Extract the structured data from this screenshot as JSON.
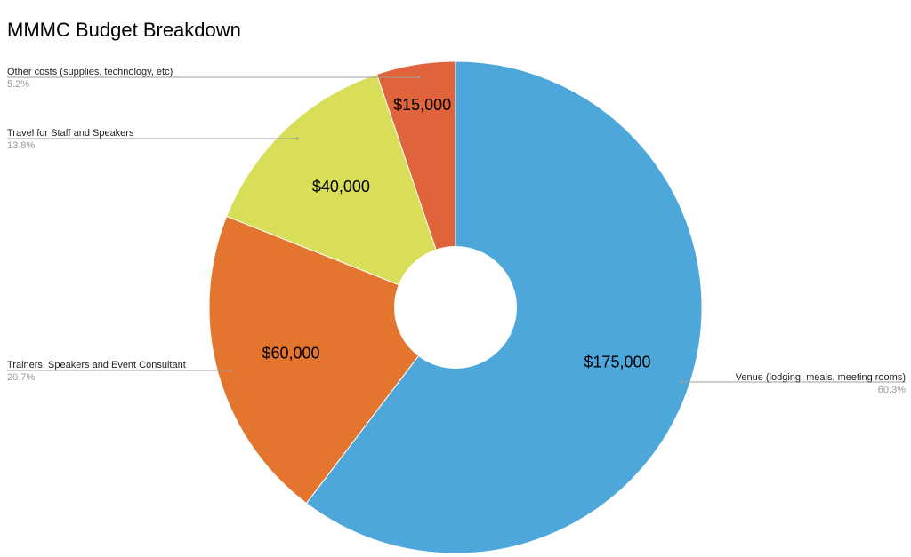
{
  "chart_data": {
    "type": "pie",
    "donut": true,
    "title": "MMMC Budget Breakdown",
    "slices": [
      {
        "name": "Venue (lodging, meals, meeting rooms)",
        "value": 175000,
        "label": "$175,000",
        "percent": "60.3%",
        "color": "#4EA7DA"
      },
      {
        "name": "Trainers, Speakers and Event Consultant",
        "value": 60000,
        "label": "$60,000",
        "percent": "20.7%",
        "color": "#E4752F"
      },
      {
        "name": "Travel for Staff and Speakers",
        "value": 40000,
        "label": "$40,000",
        "percent": "13.8%",
        "color": "#D8DE58"
      },
      {
        "name": "Other costs (supplies, technology, etc)",
        "value": 15000,
        "label": "$15,000",
        "percent": "5.2%",
        "color": "#E0643B"
      }
    ],
    "legend": "none",
    "start_angle": "12 o'clock",
    "direction": "clockwise"
  }
}
